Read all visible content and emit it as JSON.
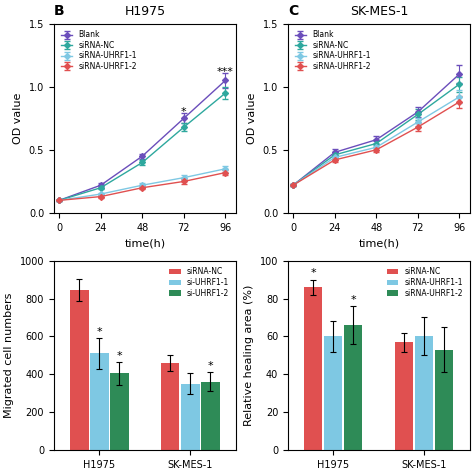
{
  "chart_data": [
    {
      "type": "line",
      "panel_label": "B",
      "title": "H1975",
      "xlabel": "time(h)",
      "ylabel": "OD value",
      "x": [
        0,
        24,
        48,
        72,
        96
      ],
      "xlim": [
        -3,
        102
      ],
      "xticks": [
        0,
        24,
        48,
        72,
        96
      ],
      "ylim": [
        0,
        1.5
      ],
      "yticks": [
        0.0,
        0.5,
        1.0,
        1.5
      ],
      "marker": "diamond",
      "legend": "upper left",
      "series": [
        {
          "name": "Blank",
          "color": "#6B4EBB",
          "values": [
            0.1,
            0.22,
            0.45,
            0.75,
            1.05
          ],
          "errors": [
            0.005,
            0.015,
            0.02,
            0.04,
            0.06
          ]
        },
        {
          "name": "siRNA-NC",
          "color": "#2EA89E",
          "values": [
            0.1,
            0.2,
            0.4,
            0.68,
            0.95
          ],
          "errors": [
            0.005,
            0.012,
            0.02,
            0.03,
            0.05
          ]
        },
        {
          "name": "siRNA-UHRF1-1",
          "color": "#7EC8E3",
          "values": [
            0.1,
            0.15,
            0.22,
            0.28,
            0.35
          ],
          "errors": [
            0.005,
            0.01,
            0.015,
            0.02,
            0.025
          ]
        },
        {
          "name": "siRNA-UHRF1-2",
          "color": "#E05050",
          "values": [
            0.1,
            0.13,
            0.2,
            0.25,
            0.32
          ],
          "errors": [
            0.005,
            0.01,
            0.01,
            0.02,
            0.02
          ]
        }
      ],
      "annotations": [
        {
          "x": 72,
          "y": 0.76,
          "text": "*"
        },
        {
          "x": 96,
          "y": 1.08,
          "text": "***"
        }
      ]
    },
    {
      "type": "line",
      "panel_label": "C",
      "title": "SK-MES-1",
      "xlabel": "time(h)",
      "ylabel": "OD value",
      "x": [
        0,
        24,
        48,
        72,
        96
      ],
      "xlim": [
        -3,
        102
      ],
      "xticks": [
        0,
        24,
        48,
        72,
        96
      ],
      "ylim": [
        0,
        1.5
      ],
      "yticks": [
        0.0,
        0.5,
        1.0,
        1.5
      ],
      "marker": "diamond",
      "legend": "upper left",
      "series": [
        {
          "name": "Blank",
          "color": "#6B4EBB",
          "values": [
            0.22,
            0.48,
            0.58,
            0.8,
            1.1
          ],
          "errors": [
            0.01,
            0.03,
            0.03,
            0.04,
            0.07
          ]
        },
        {
          "name": "siRNA-NC",
          "color": "#2EA89E",
          "values": [
            0.22,
            0.46,
            0.55,
            0.78,
            1.02
          ],
          "errors": [
            0.01,
            0.025,
            0.03,
            0.04,
            0.06
          ]
        },
        {
          "name": "siRNA-UHRF1-1",
          "color": "#7EC8E3",
          "values": [
            0.22,
            0.44,
            0.52,
            0.72,
            0.92
          ],
          "errors": [
            0.01,
            0.02,
            0.025,
            0.03,
            0.05
          ]
        },
        {
          "name": "siRNA-UHRF1-2",
          "color": "#E05050",
          "values": [
            0.22,
            0.42,
            0.5,
            0.68,
            0.88
          ],
          "errors": [
            0.01,
            0.02,
            0.02,
            0.03,
            0.045
          ]
        }
      ]
    },
    {
      "type": "bar",
      "ylabel": "Migrated cell numbers",
      "categories": [
        "H1975",
        "SK-MES-1"
      ],
      "ylim": [
        0,
        1000
      ],
      "yticks": [
        0,
        200,
        400,
        600,
        800,
        1000
      ],
      "legend": "upper right",
      "series": [
        {
          "name": "siRNA-NC",
          "color": "#E05050",
          "values": [
            845,
            460
          ],
          "errors": [
            60,
            40
          ]
        },
        {
          "name": "si-UHRF1-1",
          "color": "#7EC8E3",
          "values": [
            510,
            350
          ],
          "errors": [
            80,
            55
          ]
        },
        {
          "name": "si-UHRF1-2",
          "color": "#2E8B57",
          "values": [
            405,
            360
          ],
          "errors": [
            60,
            50
          ]
        }
      ],
      "annotations": [
        {
          "category": "H1975",
          "series": "si-UHRF1-1",
          "text": "*"
        },
        {
          "category": "H1975",
          "series": "si-UHRF1-2",
          "text": "*"
        },
        {
          "category": "SK-MES-1",
          "series": "si-UHRF1-2",
          "text": "*"
        }
      ]
    },
    {
      "type": "bar",
      "ylabel": "Relative healing area (%)",
      "categories": [
        "H1975",
        "SK-MES-1"
      ],
      "ylim": [
        0,
        100
      ],
      "yticks": [
        0,
        20,
        40,
        60,
        80,
        100
      ],
      "legend": "upper right",
      "series": [
        {
          "name": "siRNA-NC",
          "color": "#E05050",
          "values": [
            86,
            57
          ],
          "errors": [
            4,
            5
          ]
        },
        {
          "name": "siRNA-UHRF1-1",
          "color": "#7EC8E3",
          "values": [
            60,
            60
          ],
          "errors": [
            8,
            10
          ]
        },
        {
          "name": "siRNA-UHRF1-2",
          "color": "#2E8B57",
          "values": [
            66,
            53
          ],
          "errors": [
            10,
            12
          ]
        }
      ],
      "annotations": [
        {
          "category": "H1975",
          "series": "siRNA-NC",
          "text": "*"
        },
        {
          "category": "H1975",
          "series": "siRNA-UHRF1-2",
          "text": "*"
        }
      ]
    }
  ]
}
